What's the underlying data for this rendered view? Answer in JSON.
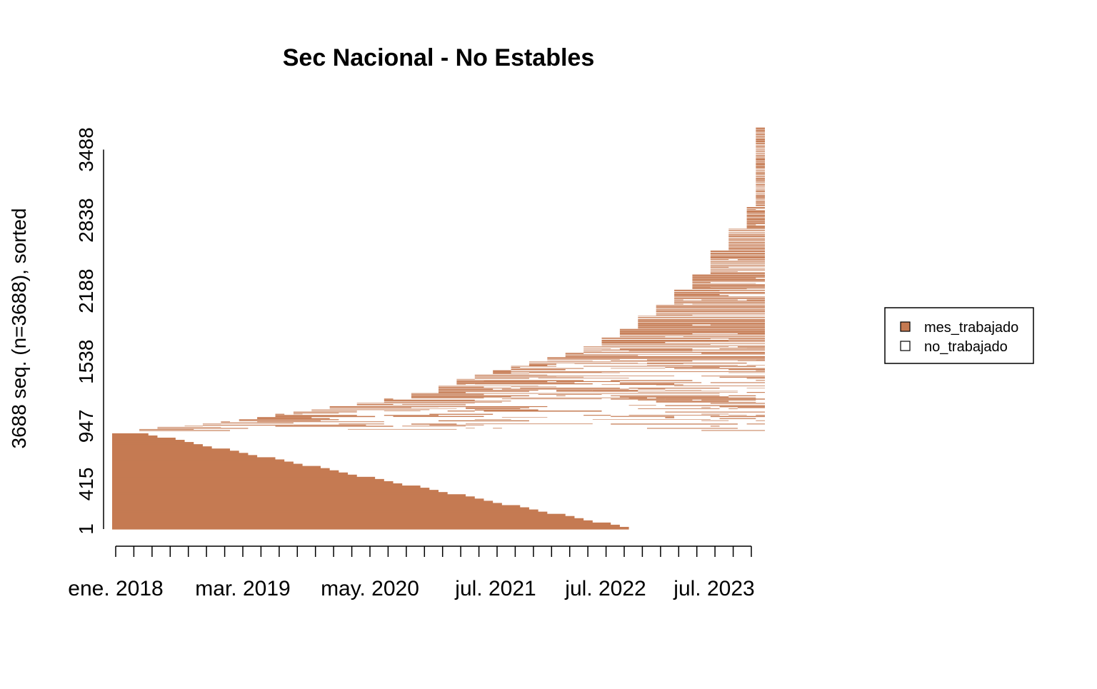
{
  "chart_data": {
    "type": "sequence_index_plot",
    "title": "Sec Nacional - No Estables",
    "ylabel": "3688 seq. (n=3688), sorted",
    "xlabel": "",
    "n_sequences": 3688,
    "y_ticks": [
      "1",
      "415",
      "947",
      "1538",
      "2188",
      "2838",
      "3488"
    ],
    "x_tick_labels": [
      "ene. 2018",
      "mar. 2019",
      "may. 2020",
      "jul. 2021",
      "jul. 2022",
      "jul. 2023"
    ],
    "time_axis": {
      "start": "2018-01",
      "end": "2023-12",
      "major_tick_months": [
        "2018-01",
        "2019-03",
        "2020-05",
        "2021-07",
        "2022-07",
        "2023-07"
      ]
    },
    "states": [
      {
        "name": "mes_trabajado",
        "color": "#C57A52"
      },
      {
        "name": "no_trabajado",
        "color": "#FFFFFF"
      }
    ],
    "legend": {
      "placement": "right",
      "entries": [
        "mes_trabajado",
        "no_trabajado"
      ]
    },
    "series": [
      {
        "name": "mes_trabajado",
        "color": "#C57A52"
      },
      {
        "name": "no_trabajado",
        "color": "#FFFFFF"
      }
    ],
    "grid": false
  }
}
